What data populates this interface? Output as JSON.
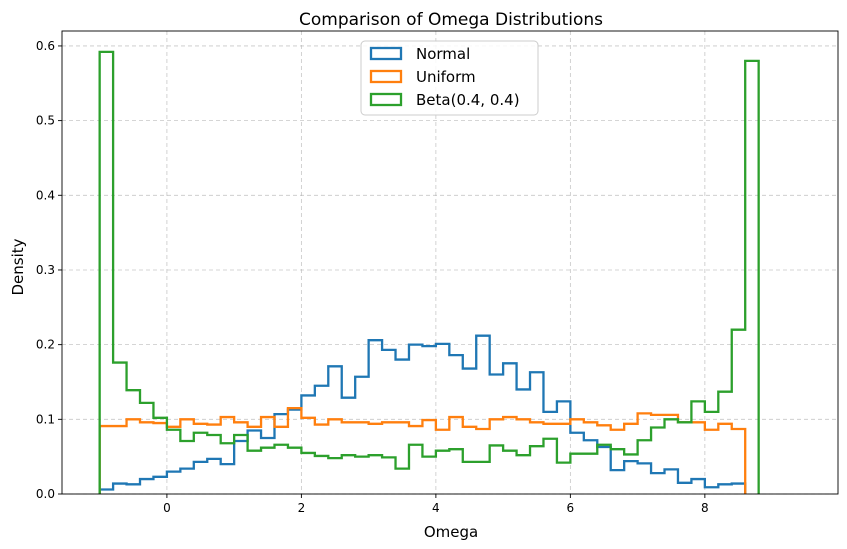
{
  "chart_data": {
    "type": "step",
    "title": "Comparison of Omega Distributions",
    "xlabel": "Omega",
    "ylabel": "Density",
    "xlim": [
      -1.56,
      9.98
    ],
    "ylim": [
      0,
      0.62
    ],
    "bin_start": -1.0,
    "bin_width": 0.2,
    "grid": true,
    "legend_position": "top-center",
    "x_ticks": [
      0,
      2,
      4,
      6,
      8
    ],
    "x_tick_labels": [
      "0",
      "2",
      "4",
      "6",
      "8"
    ],
    "y_ticks": [
      0.0,
      0.1,
      0.2,
      0.3,
      0.4,
      0.5,
      0.6
    ],
    "y_tick_labels": [
      "0.0",
      "0.1",
      "0.2",
      "0.3",
      "0.4",
      "0.5",
      "0.6"
    ],
    "series": [
      {
        "name": "Normal",
        "color": "#1f77b4",
        "values": [
          0.006,
          0.014,
          0.013,
          0.02,
          0.023,
          0.03,
          0.034,
          0.043,
          0.047,
          0.04,
          0.071,
          0.085,
          0.075,
          0.107,
          0.113,
          0.132,
          0.145,
          0.171,
          0.129,
          0.157,
          0.206,
          0.193,
          0.18,
          0.2,
          0.198,
          0.201,
          0.186,
          0.168,
          0.212,
          0.16,
          0.175,
          0.14,
          0.163,
          0.11,
          0.124,
          0.082,
          0.072,
          0.063,
          0.032,
          0.044,
          0.041,
          0.028,
          0.033,
          0.015,
          0.02,
          0.009,
          0.013,
          0.014
        ]
      },
      {
        "name": "Uniform",
        "color": "#ff7f0e",
        "values": [
          0.091,
          0.091,
          0.1,
          0.096,
          0.095,
          0.09,
          0.1,
          0.094,
          0.093,
          0.103,
          0.096,
          0.09,
          0.103,
          0.09,
          0.115,
          0.102,
          0.093,
          0.1,
          0.096,
          0.096,
          0.094,
          0.096,
          0.096,
          0.091,
          0.099,
          0.086,
          0.103,
          0.09,
          0.087,
          0.1,
          0.103,
          0.1,
          0.096,
          0.094,
          0.094,
          0.1,
          0.096,
          0.092,
          0.086,
          0.094,
          0.108,
          0.106,
          0.106,
          0.096,
          0.096,
          0.086,
          0.094,
          0.087
        ]
      },
      {
        "name": "Beta(0.4, 0.4)",
        "color": "#2ca02c",
        "values": [
          0.592,
          0.176,
          0.139,
          0.122,
          0.102,
          0.086,
          0.071,
          0.082,
          0.079,
          0.068,
          0.079,
          0.058,
          0.062,
          0.066,
          0.062,
          0.055,
          0.051,
          0.048,
          0.052,
          0.05,
          0.052,
          0.049,
          0.034,
          0.066,
          0.05,
          0.058,
          0.06,
          0.043,
          0.043,
          0.065,
          0.058,
          0.052,
          0.064,
          0.074,
          0.042,
          0.054,
          0.054,
          0.066,
          0.06,
          0.053,
          0.072,
          0.089,
          0.1,
          0.096,
          0.124,
          0.11,
          0.137,
          0.22,
          0.58
        ]
      }
    ]
  }
}
